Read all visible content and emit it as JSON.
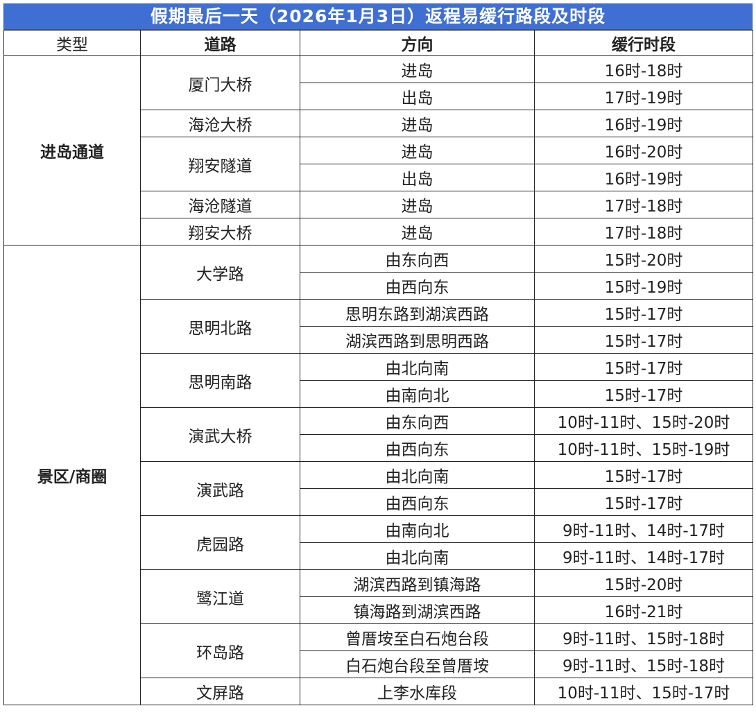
{
  "title": "假期最后一天（2026年1月3日）返程易缓行路段及时段",
  "headers": [
    "类型",
    "道路",
    "方向",
    "缓行时段"
  ],
  "groups": [
    {
      "type": "进岛通道",
      "roads": [
        {
          "name": "厦门大桥",
          "rows": [
            [
              "进岛",
              "16时-18时"
            ],
            [
              "出岛",
              "17时-19时"
            ]
          ]
        },
        {
          "name": "海沧大桥",
          "rows": [
            [
              "进岛",
              "16时-19时"
            ]
          ]
        },
        {
          "name": "翔安隧道",
          "rows": [
            [
              "进岛",
              "16时-20时"
            ],
            [
              "出岛",
              "16时-19时"
            ]
          ]
        },
        {
          "name": "海沧隧道",
          "rows": [
            [
              "进岛",
              "17时-18时"
            ]
          ]
        },
        {
          "name": "翔安大桥",
          "rows": [
            [
              "进岛",
              "17时-18时"
            ]
          ]
        }
      ]
    },
    {
      "type": "景区/商圈",
      "roads": [
        {
          "name": "大学路",
          "rows": [
            [
              "由东向西",
              "15时-20时"
            ],
            [
              "由西向东",
              "15时-19时"
            ]
          ]
        },
        {
          "name": "思明北路",
          "rows": [
            [
              "思明东路到湖滨西路",
              "15时-17时"
            ],
            [
              "湖滨西路到思明西路",
              "15时-17时"
            ]
          ]
        },
        {
          "name": "思明南路",
          "rows": [
            [
              "由北向南",
              "15时-17时"
            ],
            [
              "由南向北",
              "15时-17时"
            ]
          ]
        },
        {
          "name": "演武大桥",
          "rows": [
            [
              "由东向西",
              "10时-11时、15时-20时"
            ],
            [
              "由西向东",
              "10时-11时、15时-19时"
            ]
          ]
        },
        {
          "name": "演武路",
          "rows": [
            [
              "由北向南",
              "15时-17时"
            ],
            [
              "由西向东",
              "15时-17时"
            ]
          ]
        },
        {
          "name": "虎园路",
          "rows": [
            [
              "由南向北",
              "9时-11时、14时-17时"
            ],
            [
              "由北向南",
              "9时-11时、14时-17时"
            ]
          ]
        },
        {
          "name": "鹭江道",
          "rows": [
            [
              "湖滨西路到镇海路",
              "15时-20时"
            ],
            [
              "镇海路到湖滨西路",
              "16时-21时"
            ]
          ]
        },
        {
          "name": "环岛路",
          "rows": [
            [
              "曾厝垵至白石炮台段",
              "9时-11时、15时-18时"
            ],
            [
              "白石炮台段至曾厝垵",
              "9时-11时、15时-18时"
            ]
          ]
        },
        {
          "name": "文屏路",
          "rows": [
            [
              "上李水库段",
              "10时-11时、15时-17时"
            ]
          ]
        }
      ]
    }
  ]
}
